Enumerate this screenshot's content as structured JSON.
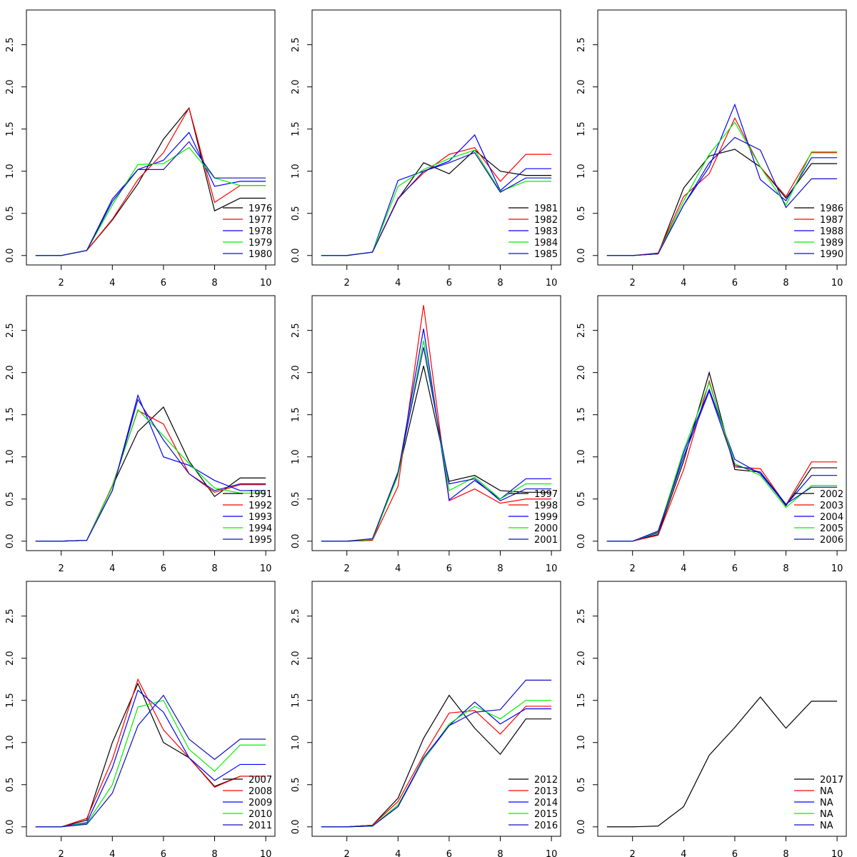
{
  "chart_data": [
    {
      "type": "line",
      "x": [
        1,
        2,
        3,
        4,
        5,
        6,
        7,
        8,
        9,
        10
      ],
      "xlim": [
        0.64,
        10.36
      ],
      "ylim": [
        -0.112,
        2.912
      ],
      "xticks": [
        2,
        4,
        6,
        8,
        10
      ],
      "yticks": [
        {
          "value": 0,
          "label": "0.0"
        },
        0.5,
        {
          "value": 1,
          "label": "1.0"
        },
        1.5,
        {
          "value": 2,
          "label": "2.0"
        },
        2.5
      ],
      "legend": "bottomright",
      "series": [
        {
          "name": "1976",
          "color": "#000000",
          "values": [
            0,
            0,
            0.06,
            0.42,
            0.85,
            1.38,
            1.75,
            0.53,
            0.68,
            0.68
          ]
        },
        {
          "name": "1977",
          "color": "#ff0000",
          "values": [
            0,
            0,
            0.06,
            0.43,
            0.9,
            1.22,
            1.75,
            0.63,
            0.83,
            0.83
          ]
        },
        {
          "name": "1978",
          "color": "#0000ff",
          "values": [
            0,
            0,
            0.06,
            0.67,
            1.02,
            1.13,
            1.46,
            0.82,
            0.88,
            0.88
          ]
        },
        {
          "name": "1979",
          "color": "#00ee00",
          "values": [
            0,
            0,
            0.06,
            0.6,
            1.08,
            1.09,
            1.28,
            0.92,
            0.83,
            0.83
          ]
        },
        {
          "name": "1980",
          "color": "#1010c0",
          "values": [
            0,
            0,
            0.06,
            0.64,
            1.02,
            1.02,
            1.35,
            0.92,
            0.92,
            0.92
          ]
        }
      ]
    },
    {
      "type": "line",
      "x": [
        1,
        2,
        3,
        4,
        5,
        6,
        7,
        8,
        9,
        10
      ],
      "xlim": [
        0.64,
        10.36
      ],
      "ylim": [
        -0.112,
        2.912
      ],
      "xticks": [
        2,
        4,
        6,
        8,
        10
      ],
      "yticks": [
        {
          "value": 0,
          "label": "0.0"
        },
        0.5,
        {
          "value": 1,
          "label": "1.0"
        },
        1.5,
        {
          "value": 2,
          "label": "2.0"
        },
        2.5
      ],
      "legend": "bottomright",
      "series": [
        {
          "name": "1981",
          "color": "#000000",
          "values": [
            0,
            0,
            0.04,
            0.67,
            1.1,
            0.97,
            1.25,
            1.0,
            0.95,
            0.95
          ]
        },
        {
          "name": "1982",
          "color": "#ff0000",
          "values": [
            0,
            0,
            0.04,
            0.68,
            0.98,
            1.2,
            1.28,
            0.88,
            1.2,
            1.2
          ]
        },
        {
          "name": "1983",
          "color": "#0000ff",
          "values": [
            0,
            0,
            0.04,
            0.89,
            1.0,
            1.12,
            1.43,
            0.77,
            1.03,
            1.03
          ]
        },
        {
          "name": "1984",
          "color": "#00ee00",
          "values": [
            0,
            0,
            0.04,
            0.82,
            1.02,
            1.15,
            1.25,
            0.76,
            0.88,
            0.88
          ]
        },
        {
          "name": "1985",
          "color": "#1010c0",
          "values": [
            0,
            0,
            0.04,
            0.67,
            1.0,
            1.1,
            1.22,
            0.75,
            0.92,
            0.92
          ]
        }
      ]
    },
    {
      "type": "line",
      "x": [
        1,
        2,
        3,
        4,
        5,
        6,
        7,
        8,
        9,
        10
      ],
      "xlim": [
        0.64,
        10.36
      ],
      "ylim": [
        -0.112,
        2.912
      ],
      "xticks": [
        2,
        4,
        6,
        8,
        10
      ],
      "yticks": [
        {
          "value": 0,
          "label": "0.0"
        },
        0.5,
        {
          "value": 1,
          "label": "1.0"
        },
        1.5,
        {
          "value": 2,
          "label": "2.0"
        },
        2.5
      ],
      "legend": "bottomright",
      "series": [
        {
          "name": "1986",
          "color": "#000000",
          "values": [
            0,
            0,
            0.02,
            0.8,
            1.18,
            1.26,
            1.05,
            0.68,
            1.09,
            1.09
          ]
        },
        {
          "name": "1987",
          "color": "#ff0000",
          "values": [
            0,
            0,
            0.03,
            0.7,
            0.97,
            1.63,
            1.05,
            0.7,
            1.22,
            1.22
          ]
        },
        {
          "name": "1988",
          "color": "#0000ff",
          "values": [
            0,
            0,
            0.02,
            0.6,
            1.05,
            1.79,
            0.9,
            0.65,
            1.16,
            1.16
          ]
        },
        {
          "name": "1989",
          "color": "#00ee00",
          "values": [
            0,
            0,
            0.02,
            0.65,
            1.2,
            1.58,
            1.05,
            0.6,
            1.23,
            1.23
          ]
        },
        {
          "name": "1990",
          "color": "#1010c0",
          "values": [
            0,
            0,
            0.02,
            0.6,
            1.1,
            1.4,
            1.25,
            0.57,
            0.91,
            0.91
          ]
        }
      ]
    },
    {
      "type": "line",
      "x": [
        1,
        2,
        3,
        4,
        5,
        6,
        7,
        8,
        9,
        10
      ],
      "xlim": [
        0.64,
        10.36
      ],
      "ylim": [
        -0.112,
        2.912
      ],
      "xticks": [
        2,
        4,
        6,
        8,
        10
      ],
      "yticks": [
        {
          "value": 0,
          "label": "0.0"
        },
        0.5,
        {
          "value": 1,
          "label": "1.0"
        },
        1.5,
        {
          "value": 2,
          "label": "2.0"
        },
        2.5
      ],
      "legend": "bottomright",
      "series": [
        {
          "name": "1991",
          "color": "#000000",
          "values": [
            0,
            0,
            0.01,
            0.65,
            1.3,
            1.59,
            0.95,
            0.53,
            0.75,
            0.75
          ]
        },
        {
          "name": "1992",
          "color": "#ff0000",
          "values": [
            0,
            0,
            0.01,
            0.66,
            1.55,
            1.39,
            0.8,
            0.58,
            0.67,
            0.67
          ]
        },
        {
          "name": "1993",
          "color": "#0000ff",
          "values": [
            0,
            0,
            0.01,
            0.6,
            1.73,
            1.0,
            0.9,
            0.72,
            0.6,
            0.6
          ]
        },
        {
          "name": "1994",
          "color": "#00ee00",
          "values": [
            0,
            0,
            0.01,
            0.65,
            1.56,
            1.25,
            0.92,
            0.63,
            0.57,
            0.57
          ]
        },
        {
          "name": "1995",
          "color": "#1010c0",
          "values": [
            0,
            0,
            0.01,
            0.6,
            1.68,
            1.2,
            0.8,
            0.6,
            0.68,
            0.68
          ]
        }
      ]
    },
    {
      "type": "line",
      "x": [
        1,
        2,
        3,
        4,
        5,
        6,
        7,
        8,
        9,
        10
      ],
      "xlim": [
        0.64,
        10.36
      ],
      "ylim": [
        -0.112,
        2.912
      ],
      "xticks": [
        2,
        4,
        6,
        8,
        10
      ],
      "yticks": [
        {
          "value": 0,
          "label": "0.0"
        },
        0.5,
        {
          "value": 1,
          "label": "1.0"
        },
        1.5,
        {
          "value": 2,
          "label": "2.0"
        },
        2.5
      ],
      "legend": "bottomright",
      "series": [
        {
          "name": "1997",
          "color": "#000000",
          "values": [
            0,
            0,
            0.01,
            0.8,
            2.08,
            0.71,
            0.78,
            0.6,
            0.58,
            0.58
          ]
        },
        {
          "name": "1998",
          "color": "#ff0000",
          "values": [
            0,
            0,
            0.01,
            0.65,
            2.8,
            0.48,
            0.62,
            0.45,
            0.5,
            0.5
          ]
        },
        {
          "name": "1999",
          "color": "#0000ff",
          "values": [
            0,
            0,
            0.02,
            0.8,
            2.52,
            0.49,
            0.72,
            0.5,
            0.74,
            0.74
          ]
        },
        {
          "name": "2000",
          "color": "#00ee00",
          "values": [
            0,
            0,
            0.02,
            0.78,
            2.38,
            0.6,
            0.76,
            0.5,
            0.68,
            0.68
          ]
        },
        {
          "name": "2001",
          "color": "#1010c0",
          "values": [
            0,
            0,
            0.03,
            0.82,
            2.3,
            0.68,
            0.74,
            0.48,
            0.62,
            0.62
          ]
        }
      ]
    },
    {
      "type": "line",
      "x": [
        1,
        2,
        3,
        4,
        5,
        6,
        7,
        8,
        9,
        10
      ],
      "xlim": [
        0.64,
        10.36
      ],
      "ylim": [
        -0.112,
        2.912
      ],
      "xticks": [
        2,
        4,
        6,
        8,
        10
      ],
      "yticks": [
        {
          "value": 0,
          "label": "0.0"
        },
        0.5,
        {
          "value": 1,
          "label": "1.0"
        },
        1.5,
        {
          "value": 2,
          "label": "2.0"
        },
        2.5
      ],
      "legend": "bottomright",
      "series": [
        {
          "name": "2002",
          "color": "#000000",
          "values": [
            0,
            0,
            0.08,
            0.95,
            2.0,
            0.85,
            0.82,
            0.42,
            0.87,
            0.87
          ]
        },
        {
          "name": "2003",
          "color": "#ff0000",
          "values": [
            0,
            0,
            0.07,
            0.85,
            1.9,
            0.88,
            0.86,
            0.43,
            0.94,
            0.94
          ]
        },
        {
          "name": "2004",
          "color": "#0000ff",
          "values": [
            0,
            0,
            0.1,
            1.05,
            1.8,
            0.97,
            0.8,
            0.43,
            0.78,
            0.78
          ]
        },
        {
          "name": "2005",
          "color": "#00ee00",
          "values": [
            0,
            0,
            0.11,
            1.08,
            1.88,
            0.92,
            0.78,
            0.4,
            0.66,
            0.66
          ]
        },
        {
          "name": "2006",
          "color": "#1010c0",
          "values": [
            0,
            0,
            0.12,
            1.0,
            1.78,
            0.9,
            0.82,
            0.44,
            0.64,
            0.64
          ]
        }
      ]
    },
    {
      "type": "line",
      "x": [
        1,
        2,
        3,
        4,
        5,
        6,
        7,
        8,
        9,
        10
      ],
      "xlim": [
        0.64,
        10.36
      ],
      "ylim": [
        -0.112,
        2.912
      ],
      "xticks": [
        2,
        4,
        6,
        8,
        10
      ],
      "yticks": [
        {
          "value": 0,
          "label": "0.0"
        },
        0.5,
        {
          "value": 1,
          "label": "1.0"
        },
        1.5,
        {
          "value": 2,
          "label": "2.0"
        },
        2.5
      ],
      "legend": "bottomright",
      "series": [
        {
          "name": "2007",
          "color": "#000000",
          "values": [
            0,
            0,
            0.08,
            1.0,
            1.7,
            1.0,
            0.82,
            0.48,
            0.6,
            0.6
          ]
        },
        {
          "name": "2008",
          "color": "#ff0000",
          "values": [
            0,
            0,
            0.1,
            0.8,
            1.75,
            1.15,
            0.82,
            0.47,
            0.6,
            0.6
          ]
        },
        {
          "name": "2009",
          "color": "#0000ff",
          "values": [
            0,
            0,
            0.05,
            0.7,
            1.62,
            1.36,
            0.82,
            0.55,
            0.74,
            0.74
          ]
        },
        {
          "name": "2010",
          "color": "#00ee00",
          "values": [
            0,
            0,
            0.04,
            0.5,
            1.42,
            1.5,
            0.92,
            0.66,
            0.97,
            0.97
          ]
        },
        {
          "name": "2011",
          "color": "#1010c0",
          "values": [
            0,
            0,
            0.03,
            0.4,
            1.2,
            1.56,
            1.04,
            0.8,
            1.04,
            1.04
          ]
        }
      ]
    },
    {
      "type": "line",
      "x": [
        1,
        2,
        3,
        4,
        5,
        6,
        7,
        8,
        9,
        10
      ],
      "xlim": [
        0.64,
        10.36
      ],
      "ylim": [
        -0.112,
        2.912
      ],
      "xticks": [
        2,
        4,
        6,
        8,
        10
      ],
      "yticks": [
        {
          "value": 0,
          "label": "0.0"
        },
        0.5,
        {
          "value": 1,
          "label": "1.0"
        },
        1.5,
        {
          "value": 2,
          "label": "2.0"
        },
        2.5
      ],
      "legend": "bottomright",
      "series": [
        {
          "name": "2012",
          "color": "#000000",
          "values": [
            0,
            0,
            0.02,
            0.34,
            1.05,
            1.56,
            1.17,
            0.86,
            1.28,
            1.28
          ]
        },
        {
          "name": "2013",
          "color": "#ff0000",
          "values": [
            0,
            0,
            0.02,
            0.3,
            0.85,
            1.35,
            1.38,
            1.1,
            1.43,
            1.43
          ]
        },
        {
          "name": "2014",
          "color": "#0000ff",
          "values": [
            0,
            0,
            0.01,
            0.24,
            0.8,
            1.2,
            1.48,
            1.22,
            1.4,
            1.4
          ]
        },
        {
          "name": "2015",
          "color": "#00ee00",
          "values": [
            0,
            0,
            0.01,
            0.26,
            0.8,
            1.22,
            1.43,
            1.28,
            1.5,
            1.5
          ]
        },
        {
          "name": "2016",
          "color": "#1010c0",
          "values": [
            0,
            0,
            0.01,
            0.24,
            0.82,
            1.2,
            1.36,
            1.39,
            1.74,
            1.74
          ]
        }
      ]
    },
    {
      "type": "line",
      "x": [
        1,
        2,
        3,
        4,
        5,
        6,
        7,
        8,
        9,
        10
      ],
      "xlim": [
        0.64,
        10.36
      ],
      "ylim": [
        -0.112,
        2.912
      ],
      "xticks": [
        2,
        4,
        6,
        8,
        10
      ],
      "yticks": [
        {
          "value": 0,
          "label": "0.0"
        },
        0.5,
        {
          "value": 1,
          "label": "1.0"
        },
        1.5,
        {
          "value": 2,
          "label": "2.0"
        },
        2.5
      ],
      "legend": "bottomright",
      "series": [
        {
          "name": "2017",
          "color": "#000000",
          "values": [
            0,
            0,
            0.01,
            0.24,
            0.85,
            1.18,
            1.54,
            1.17,
            1.49,
            1.49
          ]
        },
        {
          "name": "NA",
          "color": "#ff0000",
          "values": [
            null,
            null,
            null,
            null,
            null,
            null,
            null,
            null,
            null,
            null
          ]
        },
        {
          "name": "NA",
          "color": "#0000ff",
          "values": [
            null,
            null,
            null,
            null,
            null,
            null,
            null,
            null,
            null,
            null
          ]
        },
        {
          "name": "NA",
          "color": "#00ee00",
          "values": [
            null,
            null,
            null,
            null,
            null,
            null,
            null,
            null,
            null,
            null
          ]
        },
        {
          "name": "NA",
          "color": "#1010c0",
          "values": [
            null,
            null,
            null,
            null,
            null,
            null,
            null,
            null,
            null,
            null
          ]
        }
      ]
    }
  ]
}
